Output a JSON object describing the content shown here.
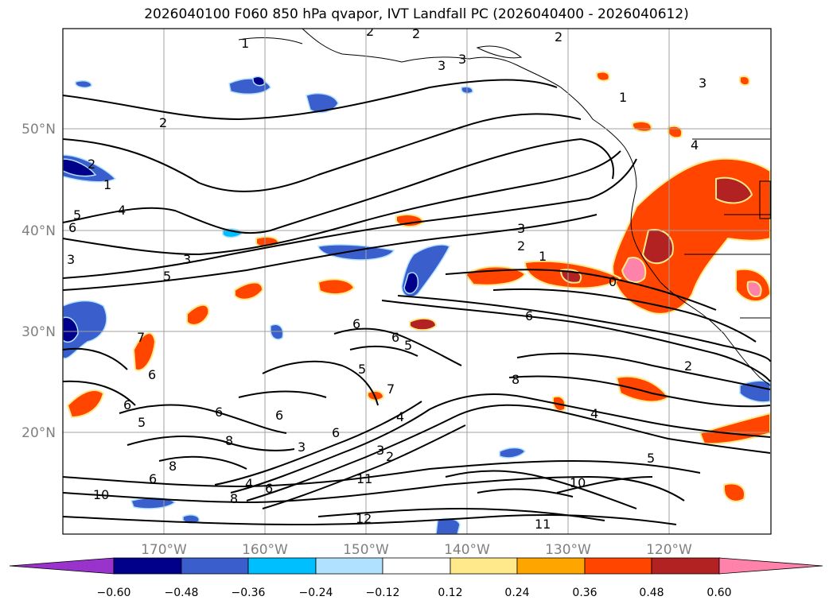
{
  "map": {
    "title": "2026040100 F060 850 hPa qvapor, IVT Landfall PC (2026040400 - 2026040612)",
    "lon_labels": [
      "170°W",
      "160°W",
      "150°W",
      "140°W",
      "130°W",
      "120°W"
    ],
    "lat_labels": [
      "50°N",
      "40°N",
      "30°N",
      "20°N"
    ],
    "contour_labels": [
      "1",
      "2",
      "2",
      "2",
      "3",
      "3",
      "3",
      "2",
      "1",
      "2",
      "1",
      "4",
      "5",
      "6",
      "3",
      "3",
      "5",
      "3",
      "2",
      "1",
      "0",
      "6",
      "6",
      "5",
      "6",
      "8",
      "4",
      "2",
      "7",
      "6",
      "5",
      "6",
      "6",
      "6",
      "8",
      "6",
      "5",
      "7",
      "4",
      "3",
      "2",
      "3",
      "8",
      "6",
      "6",
      "8",
      "4",
      "10",
      "11",
      "12",
      "11",
      "10",
      "5",
      "4"
    ]
  },
  "colorbar": {
    "labels": [
      "−0.60",
      "−0.48",
      "−0.36",
      "−0.24",
      "−0.12",
      "0.12",
      "0.24",
      "0.36",
      "0.48",
      "0.60"
    ],
    "colors": [
      "#9933cc",
      "#00008b",
      "#3a5fcd",
      "#00bfff",
      "#b0e2ff",
      "#ffffff",
      "#ffe98a",
      "#ffa500",
      "#ff4500",
      "#b22222",
      "#ff82ab"
    ]
  }
}
